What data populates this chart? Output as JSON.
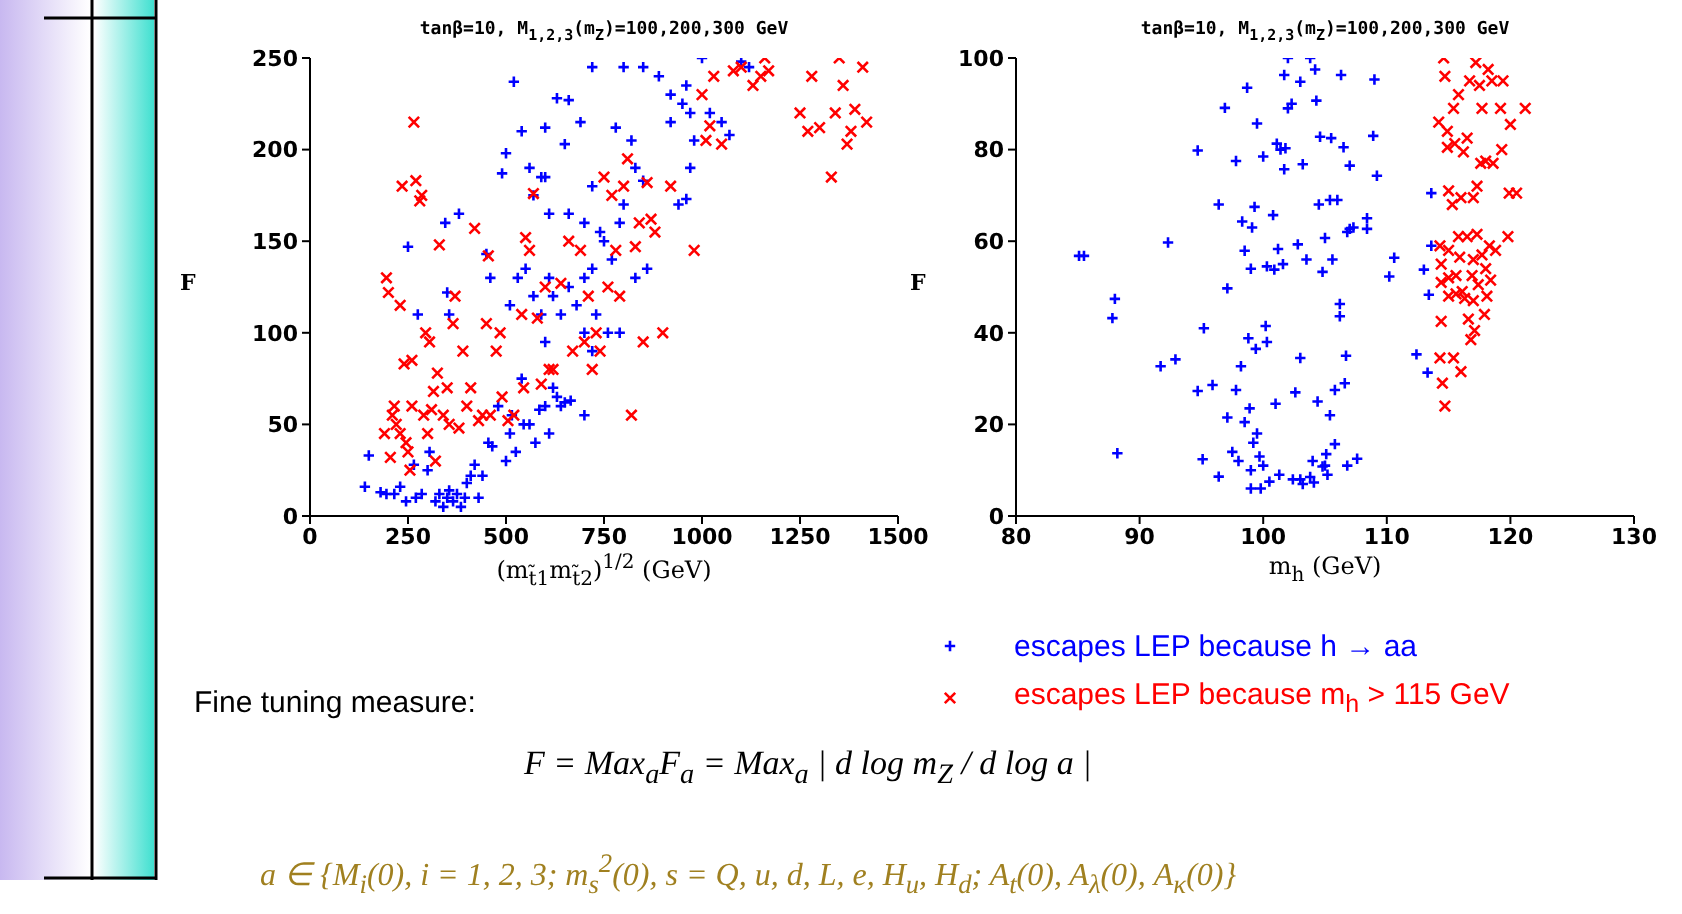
{
  "chart_data": [
    {
      "type": "scatter",
      "title": "tanβ=10, M$_{1,2,3}$(m$_{Z}$)=100,200,300 GeV",
      "xlabel": "(m$_{t̃1}$m$_{t̃2}$)$^{1/2}$ (GeV)",
      "ylabel": "F",
      "xlim": [
        0,
        1500
      ],
      "xticks": [
        0,
        250,
        500,
        750,
        1000,
        1250,
        1500
      ],
      "ylim": [
        0,
        250
      ],
      "yticks": [
        0,
        50,
        100,
        150,
        200,
        250
      ],
      "annotations": [
        "Fine tuning measure:",
        "F = Max$_{a}$F$_{a}$ = Max$_{a}$ | d log m$_{Z}$ / d log a |",
        "a ∈ {M$_{i}$(0), i = 1, 2, 3; m$_{s}$$^{2}$(0), s = Q, u, d, L, e, H$_{u}$, H$_{d}$; A$_{t}$(0), A$_{λ}$(0), A$_{κ}$(0)}"
      ],
      "series": [
        {
          "color": "#0000ff",
          "marker": "plus",
          "x": [
            140,
            150,
            180,
            195,
            215,
            230,
            245,
            265,
            270,
            285,
            300,
            305,
            320,
            330,
            340,
            350,
            355,
            365,
            375,
            385,
            395,
            400,
            410,
            420,
            430,
            440,
            455,
            465,
            480,
            500,
            510,
            515,
            525,
            540,
            545,
            560,
            575,
            585,
            600,
            610,
            620,
            630,
            640,
            650,
            665,
            700,
            700,
            720,
            730,
            760,
            790,
            600,
            610,
            620,
            640,
            660,
            680,
            700,
            720,
            750,
            770,
            790,
            800,
            830,
            860,
            510,
            530,
            550,
            570,
            590,
            460,
            450,
            350,
            355,
            345,
            380,
            250,
            275,
            520,
            540,
            600,
            630,
            650,
            660,
            690,
            720,
            780,
            800,
            820,
            850,
            890,
            920,
            950,
            960,
            970,
            980,
            1000,
            1020,
            1050,
            1070,
            1100,
            1120,
            570,
            590,
            610,
            660,
            700,
            720,
            740,
            960,
            940,
            970,
            490,
            500,
            560,
            600,
            830,
            850,
            920
          ],
          "values": [
            16,
            33,
            13,
            12,
            12,
            16,
            8,
            28,
            10,
            12,
            25,
            35,
            8,
            12,
            5,
            10,
            14,
            8,
            12,
            5,
            10,
            18,
            22,
            28,
            10,
            22,
            40,
            38,
            60,
            30,
            45,
            55,
            35,
            75,
            50,
            50,
            40,
            58,
            60,
            45,
            70,
            65,
            60,
            62,
            63,
            55,
            100,
            90,
            110,
            100,
            100,
            95,
            130,
            120,
            110,
            125,
            115,
            130,
            135,
            150,
            140,
            160,
            170,
            130,
            135,
            115,
            130,
            135,
            120,
            110,
            130,
            143,
            122,
            110,
            160,
            165,
            147,
            110,
            237,
            210,
            212,
            228,
            203,
            227,
            215,
            245,
            212,
            245,
            205,
            245,
            240,
            215,
            225,
            235,
            220,
            205,
            250,
            220,
            215,
            208,
            248,
            245,
            175,
            185,
            165,
            165,
            160,
            180,
            155,
            173,
            170,
            190,
            187,
            198,
            190,
            185,
            190,
            183,
            230
          ]
        },
        {
          "color": "#ff0000",
          "marker": "cross",
          "x": [
            190,
            195,
            200,
            205,
            210,
            215,
            220,
            230,
            230,
            235,
            240,
            245,
            250,
            255,
            260,
            260,
            265,
            270,
            280,
            285,
            290,
            295,
            300,
            305,
            310,
            315,
            320,
            325,
            330,
            340,
            350,
            355,
            365,
            370,
            380,
            390,
            400,
            410,
            420,
            430,
            440,
            450,
            455,
            460,
            475,
            485,
            490,
            505,
            520,
            540,
            545,
            550,
            560,
            570,
            580,
            590,
            600,
            610,
            620,
            640,
            660,
            670,
            690,
            700,
            710,
            720,
            730,
            740,
            750,
            760,
            770,
            780,
            790,
            800,
            810,
            820,
            830,
            840,
            850,
            860,
            870,
            880,
            900,
            920,
            980,
            1000,
            1010,
            1020,
            1030,
            1050,
            1080,
            1100,
            1130,
            1150,
            1160,
            1170,
            1250,
            1270,
            1280,
            1300,
            1330,
            1340,
            1350,
            1360,
            1370,
            1380,
            1390,
            1420,
            1410
          ],
          "values": [
            45,
            130,
            122,
            32,
            55,
            60,
            50,
            45,
            115,
            180,
            83,
            40,
            35,
            25,
            85,
            60,
            215,
            183,
            172,
            175,
            55,
            100,
            45,
            95,
            58,
            68,
            30,
            78,
            148,
            55,
            70,
            50,
            105,
            120,
            48,
            90,
            60,
            70,
            157,
            52,
            55,
            105,
            142,
            55,
            90,
            100,
            65,
            52,
            55,
            110,
            70,
            152,
            145,
            176,
            108,
            72,
            125,
            80,
            80,
            127,
            150,
            90,
            145,
            95,
            120,
            80,
            100,
            90,
            185,
            125,
            175,
            145,
            120,
            180,
            195,
            55,
            147,
            160,
            95,
            182,
            162,
            155,
            100,
            180,
            145,
            230,
            205,
            213,
            240,
            203,
            243,
            245,
            235,
            240,
            250,
            243,
            220,
            210,
            240,
            212,
            185,
            220,
            250,
            235,
            203,
            210,
            222,
            215,
            245
          ]
        }
      ]
    },
    {
      "type": "scatter",
      "title": "tanβ=10, M$_{1,2,3}$(m$_{Z}$)=100,200,300 GeV",
      "xlabel": "m$_{h}$ (GeV)",
      "ylabel": "F",
      "xlim": [
        80,
        130
      ],
      "xticks": [
        80,
        90,
        100,
        110,
        120,
        130
      ],
      "ylim": [
        0,
        100
      ],
      "yticks": [
        0,
        20,
        40,
        60,
        80,
        100
      ],
      "legend": "bottom",
      "series": [
        {
          "name": "escapes LEP because h → aa",
          "color": "#0000ff",
          "marker": "plus",
          "x": [
            85.1,
            85.5,
            88.0,
            87.8,
            88.2,
            91.7,
            92.3,
            92.9,
            94.7,
            94.7,
            95.2,
            95.1,
            95.9,
            96.4,
            96.4,
            96.9,
            97.1,
            97.1,
            97.5,
            97.8,
            97.8,
            98.0,
            98.2,
            98.3,
            98.5,
            98.5,
            98.7,
            98.8,
            98.9,
            99,
            99,
            99,
            99.1,
            99.2,
            99.3,
            99.4,
            99.5,
            99.5,
            99.7,
            99.8,
            100,
            100,
            100.2,
            100.3,
            100.3,
            100.5,
            100.8,
            100.9,
            101,
            101.1,
            101.2,
            101.3,
            101.4,
            101.6,
            101.7,
            101.7,
            101.8,
            102,
            102,
            102.3,
            102.4,
            102.6,
            102.8,
            103,
            103,
            103,
            103.2,
            103.2,
            103.5,
            103.8,
            103.8,
            104,
            104.1,
            104.2,
            104.3,
            104.4,
            104.5,
            104.6,
            104.8,
            104.8,
            105,
            105,
            105.1,
            105.2,
            105.4,
            105.4,
            105.5,
            105.6,
            105.8,
            105.8,
            106,
            106.2,
            106.2,
            106.3,
            106.5,
            106.6,
            106.7,
            106.8,
            106.8,
            107,
            107,
            107.3,
            107.6,
            108.4,
            108.4,
            108.9,
            109,
            109.2,
            110.2,
            110.6,
            112.4,
            113,
            113.3,
            113.4,
            113.6,
            113.6
          ],
          "values": [
            56.8,
            56.8,
            47.4,
            43.2,
            13.7,
            32.7,
            59.7,
            34.2,
            79.8,
            27.3,
            41,
            12.4,
            28.6,
            68,
            8.6,
            89.1,
            49.7,
            21.5,
            14,
            77.5,
            27.5,
            12,
            32.7,
            64.3,
            20.5,
            57.9,
            93.5,
            38.8,
            23.5,
            10,
            6,
            54,
            63,
            16,
            67.5,
            36.5,
            18,
            85.7,
            13,
            6,
            11,
            78.5,
            41.5,
            54.5,
            38,
            7.5,
            65.7,
            53.8,
            24.5,
            81.3,
            58.3,
            9,
            80,
            55,
            75.7,
            96.3,
            80.3,
            100,
            89,
            90,
            8,
            27,
            59.3,
            94.8,
            34.5,
            8,
            7,
            76.8,
            56,
            100,
            8.5,
            12,
            7.3,
            97.5,
            90.7,
            25,
            68,
            82.8,
            10.8,
            53.3,
            11,
            60.7,
            13.5,
            9,
            69,
            22,
            82.5,
            56,
            27.5,
            15.7,
            69,
            46.3,
            43.6,
            96.3,
            80.5,
            29,
            35,
            62,
            11,
            62.7,
            76.5,
            63,
            12.5,
            62.7,
            65,
            83,
            95.3,
            74.3,
            52.3,
            56.4,
            35.3,
            53.8,
            31.3,
            48.3,
            70.5,
            59
          ]
        },
        {
          "name": "escapes LEP because m$_{h}$ > 115 GeV",
          "color": "#ff0000",
          "marker": "cross",
          "x": [
            114.2,
            114.3,
            114.4,
            114.4,
            114.4,
            114.3,
            114.5,
            114.7,
            114.6,
            114.7,
            114.9,
            114.9,
            115,
            115,
            115,
            115,
            115.3,
            115.4,
            115.5,
            115.6,
            115.6,
            115.4,
            115.8,
            115.8,
            115.9,
            116,
            116,
            116.1,
            116.2,
            116.3,
            116.5,
            116.5,
            116.6,
            116.7,
            116.8,
            116.9,
            117,
            117,
            117,
            117.1,
            117.2,
            117.3,
            117.3,
            117.4,
            117.5,
            117.6,
            117.7,
            117.7,
            117.9,
            118,
            118,
            118.1,
            118.2,
            118.3,
            118.4,
            118.5,
            118.6,
            118.8,
            119.2,
            119.3,
            119.4,
            119.8,
            120,
            119.9,
            120.5,
            121.2
          ],
          "values": [
            86,
            59,
            55,
            51,
            42.5,
            34.5,
            29,
            24,
            100,
            96,
            84,
            80.5,
            71,
            58,
            52,
            48,
            68,
            89,
            81.3,
            48.5,
            52.5,
            34.5,
            61,
            92,
            56.5,
            31.5,
            69.5,
            49,
            79.5,
            47.5,
            82.5,
            61,
            43,
            95,
            38.5,
            52.5,
            69.5,
            56,
            47,
            40.5,
            99,
            72,
            61.5,
            50.5,
            94,
            77,
            89,
            57,
            44,
            77.5,
            54,
            48,
            97.5,
            59,
            51.5,
            95,
            77,
            58,
            89,
            80,
            95,
            61,
            85.5,
            70.5,
            70.5,
            89
          ]
        }
      ]
    }
  ]
}
